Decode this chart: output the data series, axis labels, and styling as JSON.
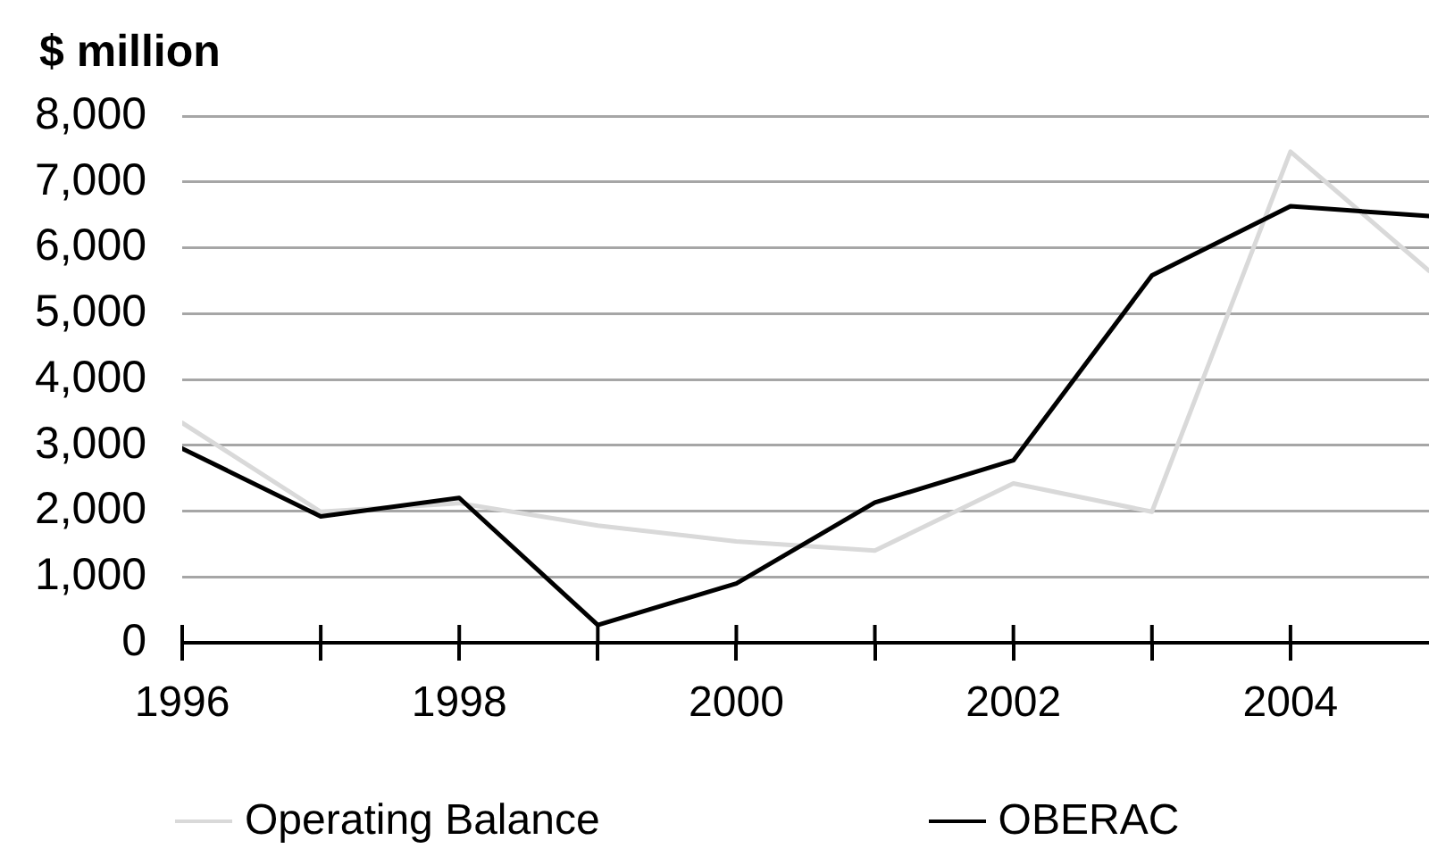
{
  "chart_data": {
    "type": "line",
    "ylabel": "$ million",
    "x": [
      1996,
      1997,
      1998,
      1999,
      2000,
      2001,
      2002,
      2003,
      2004,
      2005
    ],
    "series": [
      {
        "name": "Operating Balance",
        "color": "#d9d9d9",
        "values": [
          3340,
          1990,
          2120,
          1780,
          1540,
          1400,
          2420,
          1990,
          7460,
          5650
        ]
      },
      {
        "name": "OBERAC",
        "color": "#000000",
        "values": [
          2950,
          1920,
          2200,
          270,
          900,
          2130,
          2770,
          5580,
          6630,
          6480
        ]
      }
    ],
    "xlim": [
      1996,
      2005
    ],
    "xticks": [
      1996,
      {
        "value": 1997,
        "label": null
      },
      1998,
      {
        "value": 1999,
        "label": null
      },
      2000,
      {
        "value": 2001,
        "label": null
      },
      2002,
      {
        "value": 2003,
        "label": null
      },
      2004
    ],
    "ylim": [
      0,
      8000
    ],
    "yticks": [
      0,
      {
        "value": 1000,
        "label": "1,000"
      },
      {
        "value": 2000,
        "label": "2,000"
      },
      {
        "value": 3000,
        "label": "3,000"
      },
      {
        "value": 4000,
        "label": "4,000"
      },
      {
        "value": 5000,
        "label": "5,000"
      },
      {
        "value": 6000,
        "label": "6,000"
      },
      {
        "value": 7000,
        "label": "7,000"
      },
      {
        "value": 8000,
        "label": "8,000"
      }
    ],
    "grid": "y",
    "legend": "bottom",
    "marker": "none",
    "line_style": "solid"
  }
}
